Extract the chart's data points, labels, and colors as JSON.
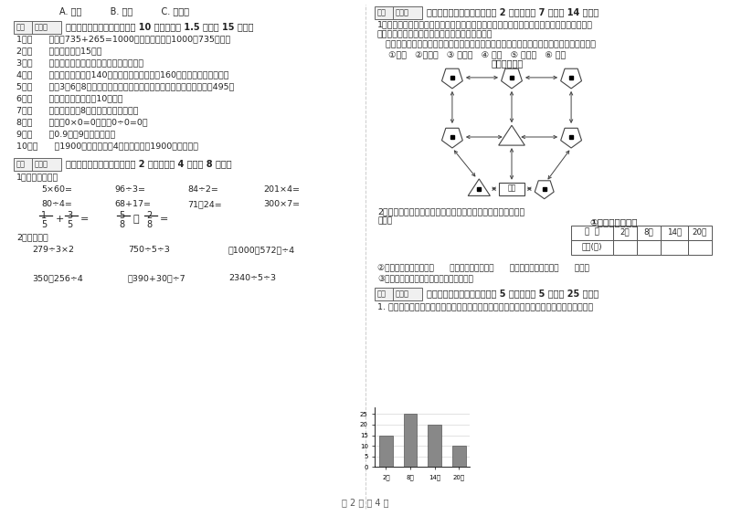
{
  "page_bg": "#ffffff",
  "text_color": "#222222",
  "top_left_options": "A. 一定          B. 可能          C. 不可能",
  "section3_title": "三、仔细推敲，正确判断（共 10 小题，每题 1.5 分，共 15 分）。",
  "section3_items": [
    "1．（      ）根据735+265=1000，可以直接写出1000－735的差。",
    "2．（      ）李老师身高15米。",
    "3．（      ）长方形的周长就是它四条边长度的和。",
    "4．（      ）一条河平均水深140厘米，一匹小马身高是160厘米，它肯定能通过。",
    "5．（      ）用3、6、8这三个数字组成的最大三位数与最小三位数，它们相差495。",
    "6．（      ）小明家客厅面积是10公顷。",
    "7．（      ）一个两位乘8，积一定也是两位数。",
    "8．（      ）因为0×0=0，所以0÷0=0。",
    "9．（      ）0.9里有9个十分之一。",
    "10．（      ）1900年的年份数是4的倍数，所以1900年是闰年。"
  ],
  "section4_title": "四、看清题目，细心计算（共 2 小题，每题 4 分，共 8 分）。",
  "section4_sub1": "1、直接写得数。",
  "section4_row1": [
    "5×60=",
    "96÷3=",
    "84÷2=",
    "201×4="
  ],
  "section4_row2": [
    "80÷4=",
    "68+17=",
    "71－24=",
    "300×7="
  ],
  "section4_sub2": "2、竖式计算",
  "section4_vert1": [
    "279÷3×2",
    "750÷5÷3",
    "（1000－572）÷4"
  ],
  "section4_vert2": [
    "350－256÷4",
    "（390+30）÷7",
    "2340÷5÷3"
  ],
  "section5_title": "五、认真思考，综合能力（共 2 小题，每题 7 分，共 14 分）。",
  "section5_p1": "1、走进动物园大门，正北面是猴子山和熊猫馆，狮子山的东侧是飞禽馆，四侧是猴园，大象",
  "section5_p2": "馆和鱼馆的场地分别在动物园的东北角和西北角。",
  "section5_p3": "   根据小雪的描述，请你把这些动物场馆所在的位置，在动物园的导游图上用序号表示出来。",
  "section5_labels": "①狮山   ②熊猫馆   ③ 飞禽馆   ④ 猴园   ⑤ 大象馆   ⑥ 鱼馆",
  "section5_map_title": "动物园导游图",
  "section5_q2_intro": "2、下面是气温自测仪上记录的某天四个不同时间的气温情况：",
  "bar_ylabel": "（度）",
  "bar_title": "①根据统计图填表",
  "bar_values": [
    15,
    25,
    20,
    10
  ],
  "bar_x_labels": [
    "2时",
    "8时",
    "14时",
    "20时"
  ],
  "bar_y_ticks": [
    0,
    5,
    10,
    15,
    20,
    25
  ],
  "bar_color": "#888888",
  "table_header": [
    "时  间",
    "2时",
    "8时",
    "14时",
    "20时"
  ],
  "table_row_label": "气温(度)",
  "section5_q2a": "②这一天的最高气温是（      ）度，最低气温是（      ）度，平均气温大约（      ）度。",
  "section5_q2b": "③实际算一算，这天的平均气温是多少度？",
  "section6_title": "六、活用知识，解决问题（共 5 小题，每题 5 分，共 25 分）。",
  "section6_p1": "1. 王大伯家有一块菜地，他把其中的七分之二种白菜，七分之三种萝卜，种白菜和萝卜的地",
  "footer": "第 2 页 共 4 页"
}
